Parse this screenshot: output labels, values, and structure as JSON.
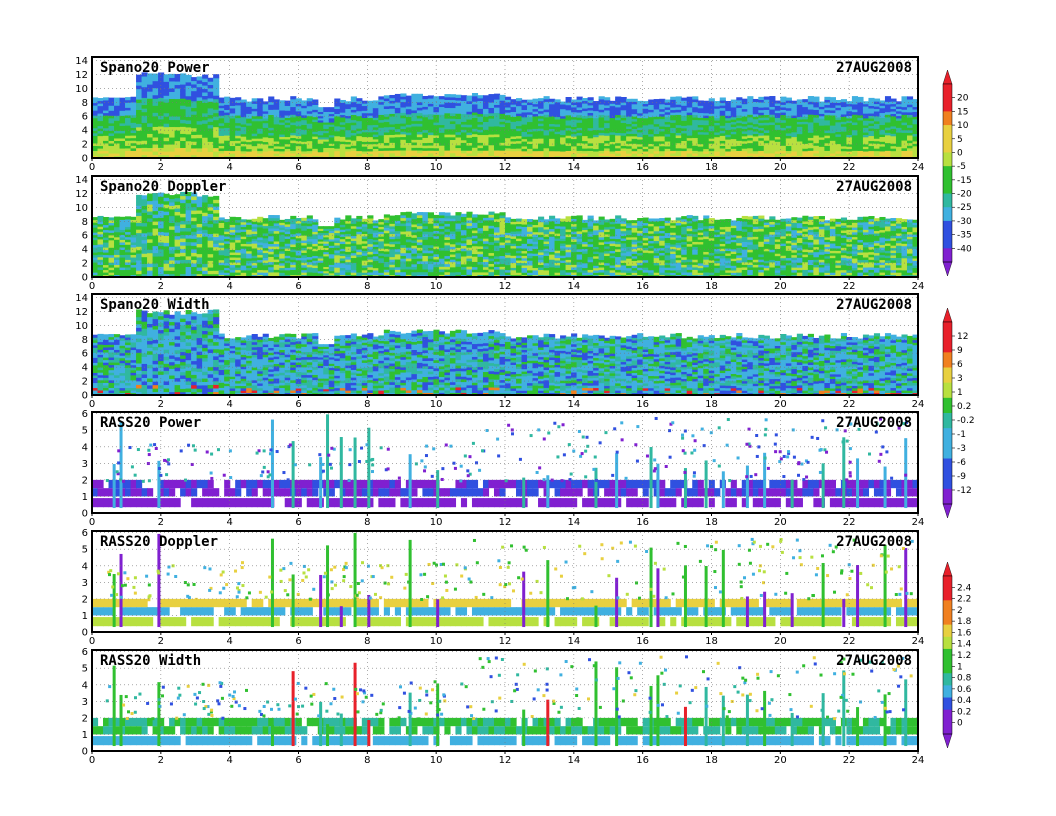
{
  "chart_data": [
    {
      "type": "heatmap",
      "title": "Spano20  Power",
      "date": "27AUG2008",
      "xlim": [
        0,
        24
      ],
      "ylim": [
        0,
        14.5
      ],
      "xticks": [
        "0",
        "2",
        "4",
        "6",
        "8",
        "10",
        "12",
        "14",
        "16",
        "18",
        "20",
        "22",
        "24"
      ],
      "yticks": [
        "0",
        "2",
        "4",
        "6",
        "8",
        "10",
        "12",
        "14"
      ],
      "kind": "wind",
      "field": "power",
      "top": 8.5
    },
    {
      "type": "heatmap",
      "title": "Spano20  Doppler",
      "date": "27AUG2008",
      "xlim": [
        0,
        24
      ],
      "ylim": [
        0,
        14.5
      ],
      "xticks": [
        "0",
        "2",
        "4",
        "6",
        "8",
        "10",
        "12",
        "14",
        "16",
        "18",
        "20",
        "22",
        "24"
      ],
      "yticks": [
        "0",
        "2",
        "4",
        "6",
        "8",
        "10",
        "12",
        "14"
      ],
      "kind": "wind",
      "field": "doppler",
      "top": 8.5
    },
    {
      "type": "heatmap",
      "title": "Spano20  Width",
      "date": "27AUG2008",
      "xlim": [
        0,
        24
      ],
      "ylim": [
        0,
        14.5
      ],
      "xticks": [
        "0",
        "2",
        "4",
        "6",
        "8",
        "10",
        "12",
        "14",
        "16",
        "18",
        "20",
        "22",
        "24"
      ],
      "yticks": [
        "0",
        "2",
        "4",
        "6",
        "8",
        "10",
        "12",
        "14"
      ],
      "kind": "wind",
      "field": "width",
      "top": 8.5
    },
    {
      "type": "heatmap",
      "title": "RASS20  Power",
      "date": "27AUG2008",
      "xlim": [
        0,
        24
      ],
      "ylim": [
        0,
        6.1
      ],
      "xticks": [
        "0",
        "2",
        "4",
        "6",
        "8",
        "10",
        "12",
        "14",
        "16",
        "18",
        "20",
        "22",
        "24"
      ],
      "yticks": [
        "0",
        "1",
        "2",
        "3",
        "4",
        "5",
        "6"
      ],
      "kind": "rass",
      "field": "power"
    },
    {
      "type": "heatmap",
      "title": "RASS20  Doppler",
      "date": "27AUG2008",
      "xlim": [
        0,
        24
      ],
      "ylim": [
        0,
        6.1
      ],
      "xticks": [
        "0",
        "2",
        "4",
        "6",
        "8",
        "10",
        "12",
        "14",
        "16",
        "18",
        "20",
        "22",
        "24"
      ],
      "yticks": [
        "0",
        "1",
        "2",
        "3",
        "4",
        "5",
        "6"
      ],
      "kind": "rass",
      "field": "doppler"
    },
    {
      "type": "heatmap",
      "title": "RASS20  Width",
      "date": "27AUG2008",
      "xlim": [
        0,
        24
      ],
      "ylim": [
        0,
        6.1
      ],
      "xticks": [
        "0",
        "2",
        "4",
        "6",
        "8",
        "10",
        "12",
        "14",
        "16",
        "18",
        "20",
        "22",
        "24"
      ],
      "yticks": [
        "0",
        "1",
        "2",
        "3",
        "4",
        "5",
        "6"
      ],
      "kind": "rass",
      "field": "width"
    }
  ],
  "colorbars": [
    {
      "labels": [
        "20",
        "15",
        "10",
        "5",
        "0",
        "-5",
        "-15",
        "-20",
        "-25",
        "-30",
        "-35",
        "-40"
      ]
    },
    {
      "labels": [
        "12",
        "9",
        "6",
        "3",
        "1",
        "0.2",
        "-0.2",
        "-1",
        "-3",
        "-6",
        "-9",
        "-12"
      ]
    },
    {
      "labels": [
        "2.4",
        "2.2",
        "2",
        "1.8",
        "1.6",
        "1.4",
        "1.2",
        "1",
        "0.8",
        "0.6",
        "0.4",
        "0.2",
        "0"
      ]
    }
  ],
  "colors": {
    "red": "#e8202a",
    "orange": "#f08020",
    "yellow": "#e8d040",
    "lime": "#b8e040",
    "green": "#30c030",
    "teal": "#30b8a0",
    "cyan": "#40b0e0",
    "blue": "#3050e0",
    "purple": "#8020d0"
  }
}
